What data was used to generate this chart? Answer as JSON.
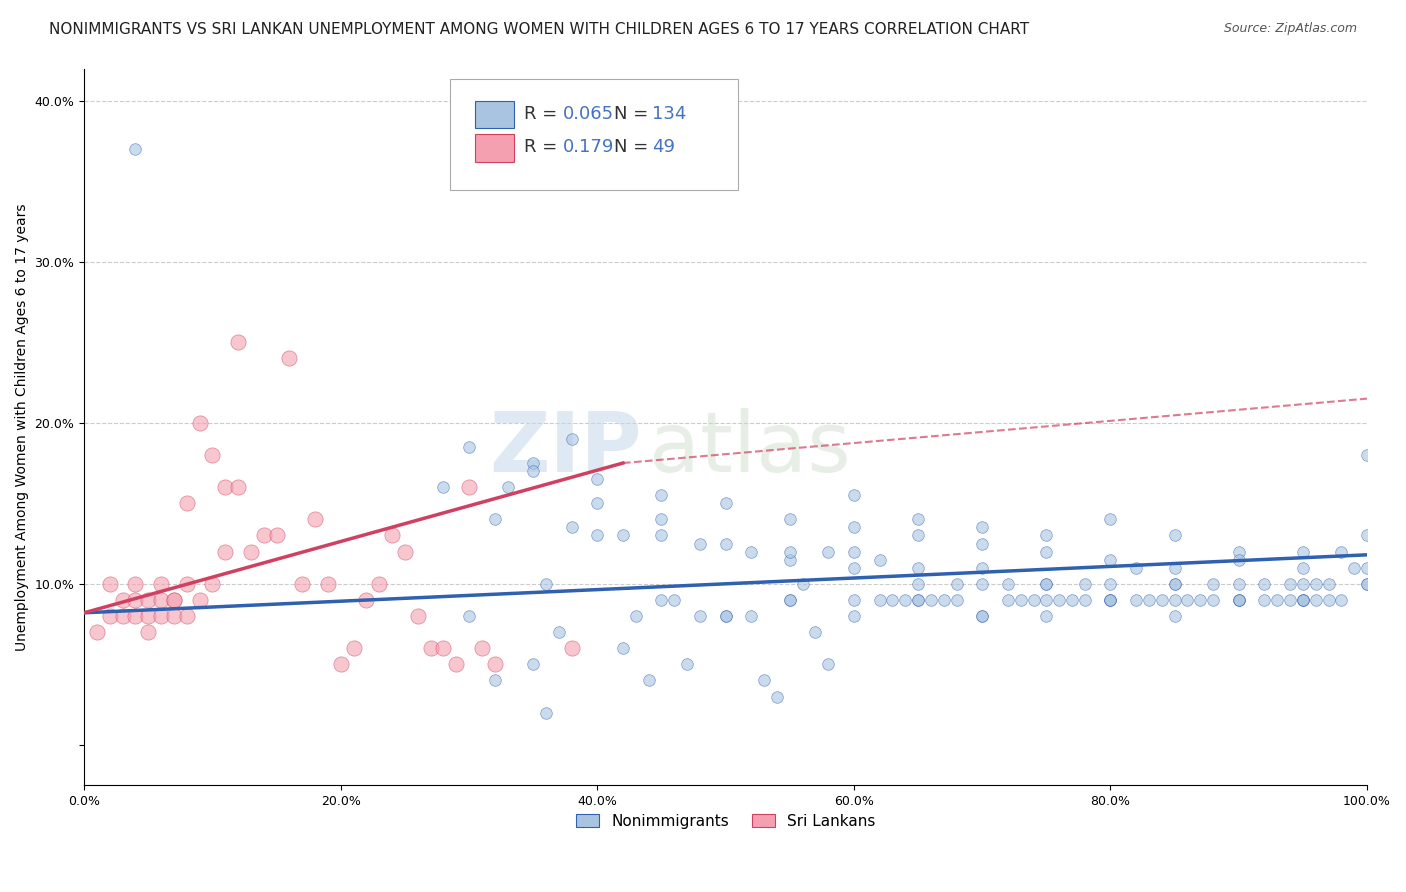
{
  "title": "NONIMMIGRANTS VS SRI LANKAN UNEMPLOYMENT AMONG WOMEN WITH CHILDREN AGES 6 TO 17 YEARS CORRELATION CHART",
  "source": "Source: ZipAtlas.com",
  "xlabel": "",
  "ylabel": "Unemployment Among Women with Children Ages 6 to 17 years",
  "watermark_zip": "ZIP",
  "watermark_atlas": "atlas",
  "series1_label": "Nonimmigrants",
  "series2_label": "Sri Lankans",
  "color1": "#a8c4e0",
  "color2": "#f4a0b0",
  "trend1_color": "#3060b0",
  "trend2_color": "#d04060",
  "xlim": [
    0,
    1.0
  ],
  "ylim": [
    -0.025,
    0.42
  ],
  "xticks": [
    0.0,
    0.2,
    0.4,
    0.6,
    0.8,
    1.0
  ],
  "yticks": [
    0.0,
    0.1,
    0.2,
    0.3,
    0.4
  ],
  "xticklabels": [
    "0.0%",
    "20.0%",
    "40.0%",
    "60.0%",
    "80.0%",
    "100.0%"
  ],
  "yticklabels": [
    "",
    "10.0%",
    "20.0%",
    "30.0%",
    "40.0%"
  ],
  "background_color": "#ffffff",
  "title_color": "#222222",
  "title_fontsize": 11,
  "axis_label_fontsize": 10,
  "tick_fontsize": 9,
  "scatter1_x": [
    0.3,
    0.35,
    0.4,
    0.45,
    0.5,
    0.28,
    0.32,
    0.38,
    0.42,
    0.48,
    0.52,
    0.55,
    0.58,
    0.6,
    0.62,
    0.65,
    0.68,
    0.7,
    0.72,
    0.75,
    0.78,
    0.8,
    0.82,
    0.85,
    0.88,
    0.9,
    0.92,
    0.94,
    0.95,
    0.96,
    0.97,
    0.98,
    0.99,
    1.0,
    0.6,
    0.65,
    0.7,
    0.75,
    0.8,
    0.85,
    0.9,
    0.95,
    1.0,
    0.55,
    0.6,
    0.65,
    0.7,
    0.75,
    0.8,
    0.85,
    0.9,
    0.95,
    1.0,
    0.45,
    0.5,
    0.55,
    0.6,
    0.65,
    0.7,
    0.75,
    0.8,
    0.85,
    0.9,
    0.95,
    1.0,
    0.4,
    0.45,
    0.5,
    0.55,
    0.6,
    0.65,
    0.7,
    0.75,
    0.8,
    0.85,
    0.9,
    0.95,
    0.35,
    0.4,
    0.45,
    0.5,
    0.55,
    0.6,
    0.65,
    0.7,
    0.75,
    0.8,
    0.85,
    0.9,
    0.95,
    1.0,
    0.3,
    0.35,
    0.37,
    0.42,
    0.47,
    0.52,
    0.57,
    0.62,
    0.67,
    0.72,
    0.77,
    0.82,
    0.87,
    0.92,
    0.97,
    0.33,
    0.43,
    0.53,
    0.63,
    0.73,
    0.83,
    0.93,
    0.38,
    0.48,
    0.58,
    0.68,
    0.78,
    0.88,
    0.98,
    0.04,
    0.32,
    0.36,
    0.44,
    0.54,
    0.64,
    0.74,
    0.84,
    0.94,
    0.36,
    0.46,
    0.56,
    0.66,
    0.76,
    0.86,
    0.96
  ],
  "scatter1_y": [
    0.185,
    0.175,
    0.165,
    0.155,
    0.15,
    0.16,
    0.14,
    0.135,
    0.13,
    0.125,
    0.12,
    0.115,
    0.12,
    0.11,
    0.115,
    0.11,
    0.1,
    0.11,
    0.1,
    0.1,
    0.1,
    0.1,
    0.11,
    0.1,
    0.1,
    0.1,
    0.1,
    0.1,
    0.11,
    0.1,
    0.1,
    0.12,
    0.11,
    0.13,
    0.155,
    0.14,
    0.135,
    0.13,
    0.14,
    0.13,
    0.12,
    0.12,
    0.18,
    0.14,
    0.135,
    0.13,
    0.125,
    0.12,
    0.115,
    0.11,
    0.115,
    0.1,
    0.11,
    0.13,
    0.125,
    0.12,
    0.12,
    0.1,
    0.1,
    0.1,
    0.09,
    0.1,
    0.09,
    0.09,
    0.1,
    0.13,
    0.09,
    0.08,
    0.09,
    0.08,
    0.09,
    0.08,
    0.09,
    0.09,
    0.09,
    0.09,
    0.09,
    0.17,
    0.15,
    0.14,
    0.08,
    0.09,
    0.09,
    0.09,
    0.08,
    0.08,
    0.09,
    0.08,
    0.09,
    0.09,
    0.1,
    0.08,
    0.05,
    0.07,
    0.06,
    0.05,
    0.08,
    0.07,
    0.09,
    0.09,
    0.09,
    0.09,
    0.09,
    0.09,
    0.09,
    0.09,
    0.16,
    0.08,
    0.04,
    0.09,
    0.09,
    0.09,
    0.09,
    0.19,
    0.08,
    0.05,
    0.09,
    0.09,
    0.09,
    0.09,
    0.37,
    0.04,
    0.02,
    0.04,
    0.03,
    0.09,
    0.09,
    0.09,
    0.09,
    0.1,
    0.09,
    0.1,
    0.09,
    0.09,
    0.09,
    0.09
  ],
  "scatter2_x": [
    0.01,
    0.02,
    0.02,
    0.03,
    0.03,
    0.04,
    0.04,
    0.04,
    0.05,
    0.05,
    0.05,
    0.06,
    0.06,
    0.06,
    0.07,
    0.07,
    0.07,
    0.08,
    0.08,
    0.08,
    0.09,
    0.09,
    0.1,
    0.1,
    0.11,
    0.11,
    0.12,
    0.12,
    0.13,
    0.14,
    0.15,
    0.16,
    0.17,
    0.18,
    0.19,
    0.2,
    0.21,
    0.22,
    0.23,
    0.24,
    0.25,
    0.26,
    0.27,
    0.28,
    0.29,
    0.3,
    0.31,
    0.32,
    0.38
  ],
  "scatter2_y": [
    0.07,
    0.08,
    0.1,
    0.09,
    0.08,
    0.08,
    0.1,
    0.09,
    0.09,
    0.08,
    0.07,
    0.1,
    0.09,
    0.08,
    0.09,
    0.09,
    0.08,
    0.1,
    0.15,
    0.08,
    0.09,
    0.2,
    0.18,
    0.1,
    0.12,
    0.16,
    0.25,
    0.16,
    0.12,
    0.13,
    0.13,
    0.24,
    0.1,
    0.14,
    0.1,
    0.05,
    0.06,
    0.09,
    0.1,
    0.13,
    0.12,
    0.08,
    0.06,
    0.06,
    0.05,
    0.16,
    0.06,
    0.05,
    0.06
  ],
  "trend1_x0": 0.0,
  "trend1_x1": 1.0,
  "trend1_y0": 0.082,
  "trend1_y1": 0.118,
  "trend2_x0": 0.0,
  "trend2_x1": 0.42,
  "trend2_y0": 0.082,
  "trend2_y1": 0.175,
  "trend2d_x0": 0.42,
  "trend2d_x1": 1.0,
  "trend2d_y0": 0.175,
  "trend2d_y1": 0.215,
  "dot_size1": 70,
  "dot_size2": 120,
  "dot_alpha": 0.6,
  "grid_color": "#cccccc",
  "legend_text_color": "#4472c4",
  "legend_fontsize": 13
}
